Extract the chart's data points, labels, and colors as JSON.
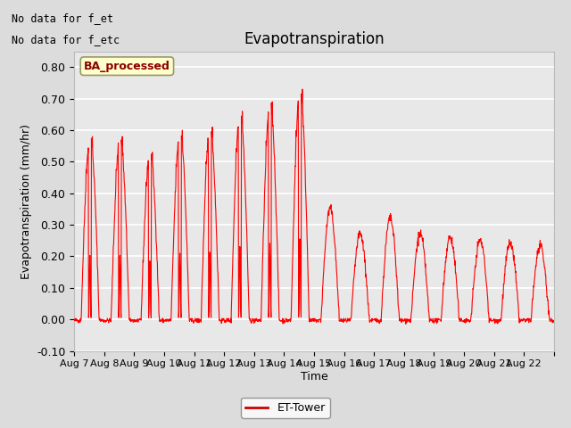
{
  "title": "Evapotranspiration",
  "xlabel": "Time",
  "ylabel": "Evapotranspiration (mm/hr)",
  "ylim": [
    -0.1,
    0.85
  ],
  "yticks": [
    -0.1,
    0.0,
    0.1,
    0.2,
    0.3,
    0.4,
    0.5,
    0.6,
    0.7,
    0.8
  ],
  "date_labels": [
    "Aug 7",
    "Aug 8",
    "Aug 9",
    "Aug 10",
    "Aug 11",
    "Aug 12",
    "Aug 13",
    "Aug 14",
    "Aug 15",
    "Aug 16",
    "Aug 17",
    "Aug 18",
    "Aug 19",
    "Aug 20",
    "Aug 21",
    "Aug 22"
  ],
  "corner_text_line1": "No data for f_et",
  "corner_text_line2": "No data for f_etc",
  "box_label": "BA_processed",
  "legend_label": "ET-Tower",
  "line_color": "#FF0000",
  "legend_line_color": "#CC0000",
  "bg_color": "#DCDCDC",
  "plot_bg_color": "#E8E8E8",
  "box_bg_color": "#FFFFCC",
  "box_edge_color": "#999966",
  "n_days": 16,
  "points_per_day": 96,
  "daily_peaks": [
    0.58,
    0.58,
    0.53,
    0.6,
    0.61,
    0.66,
    0.69,
    0.73,
    0.35,
    0.27,
    0.32,
    0.27,
    0.26,
    0.25,
    0.24,
    0.23
  ]
}
